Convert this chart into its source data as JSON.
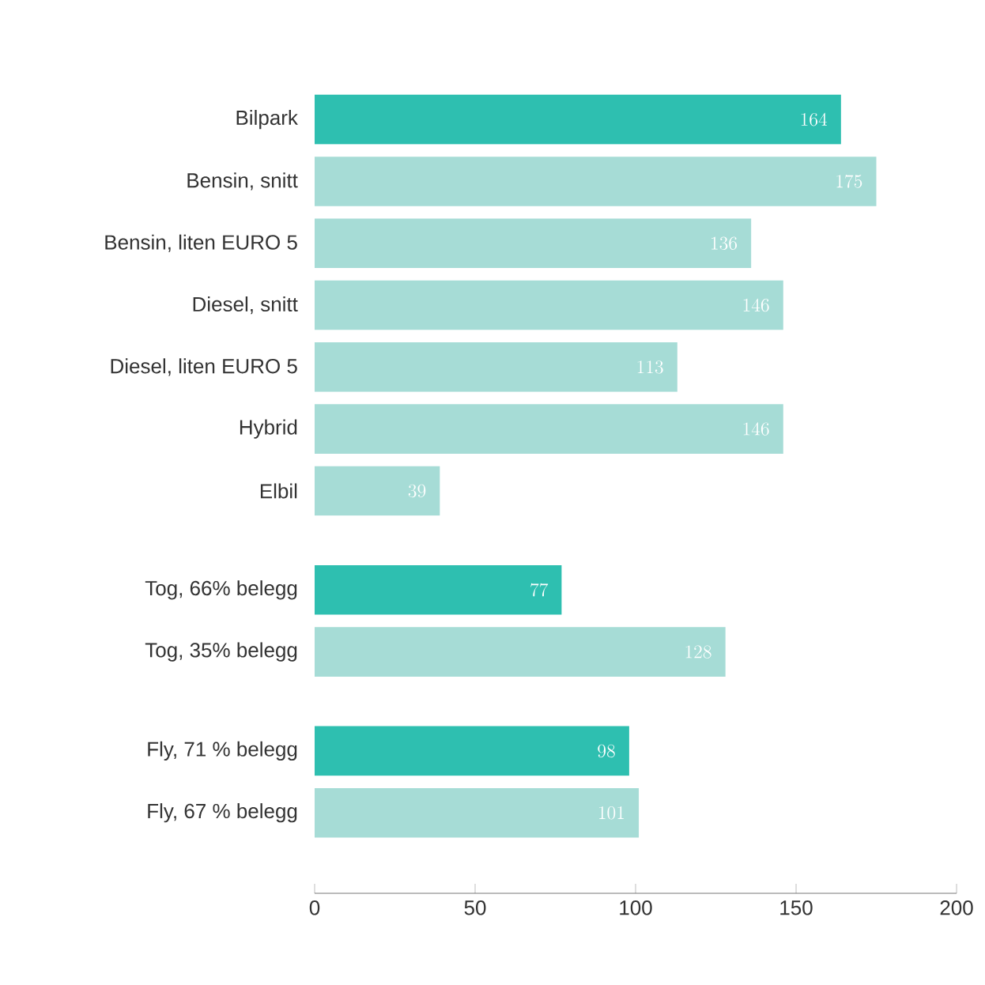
{
  "chart_data": {
    "type": "bar",
    "orientation": "horizontal",
    "categories": [
      "Bilpark",
      "Bensin, snitt",
      "Bensin, liten EURO 5",
      "Diesel, snitt",
      "Diesel, liten EURO 5",
      "Hybrid",
      "Elbil",
      null,
      "Tog, 66% belegg",
      "Tog, 35% belegg",
      null,
      "Fly, 71 % belegg",
      "Fly, 67 % belegg"
    ],
    "values": [
      164,
      175,
      136,
      146,
      113,
      146,
      39,
      null,
      77,
      128,
      null,
      98,
      101
    ],
    "colors": [
      "#2ebfb0",
      "#a6dcd6",
      "#a6dcd6",
      "#a6dcd6",
      "#a6dcd6",
      "#a6dcd6",
      "#a6dcd6",
      null,
      "#2ebfb0",
      "#a6dcd6",
      null,
      "#2ebfb0",
      "#a6dcd6"
    ],
    "xlim": [
      0,
      200
    ],
    "xticks": [
      0,
      50,
      100,
      150,
      200
    ],
    "data_labels": true
  }
}
